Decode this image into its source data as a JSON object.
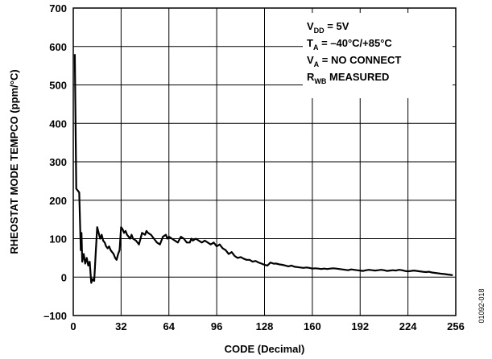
{
  "chart_data": {
    "type": "line",
    "title": "",
    "xlabel": "CODE (Decimal)",
    "ylabel": "RHEOSTAT MODE TEMPCO (ppm/°C)",
    "xlim": [
      0,
      256
    ],
    "ylim": [
      -100,
      700
    ],
    "xticks": [
      0,
      32,
      64,
      96,
      128,
      160,
      192,
      224,
      256
    ],
    "yticks": [
      -100,
      0,
      100,
      200,
      300,
      400,
      500,
      600,
      700
    ],
    "ytick_labels": [
      "–100",
      "0",
      "100",
      "200",
      "300",
      "400",
      "500",
      "600",
      "700"
    ],
    "grid": true,
    "annotations": [
      {
        "main": "V",
        "sub": "DD",
        "rest": " = 5V"
      },
      {
        "main": "T",
        "sub": "A",
        "rest": " = –40°C/+85°C"
      },
      {
        "main": "V",
        "sub": "A",
        "rest": " = NO CONNECT"
      },
      {
        "main": "R",
        "sub": "WB",
        "rest": " MEASURED"
      }
    ],
    "series": [
      {
        "x": [
          1,
          2,
          3,
          4,
          5,
          5.5,
          6,
          7,
          8,
          9,
          10,
          11,
          12,
          13,
          14,
          15,
          16,
          17,
          18,
          19,
          20,
          21,
          22,
          23,
          24,
          25,
          26,
          27,
          28,
          29,
          30,
          31,
          32,
          33,
          34,
          35,
          36,
          37,
          38,
          39,
          40,
          42,
          44,
          46,
          48,
          49,
          50,
          52,
          54,
          56,
          58,
          60,
          62,
          63,
          64,
          66,
          68,
          70,
          72,
          74,
          76,
          78,
          79,
          80,
          82,
          84,
          86,
          88,
          90,
          92,
          94,
          96,
          98,
          100,
          102,
          104,
          106,
          108,
          110,
          112,
          114,
          116,
          118,
          120,
          122,
          124,
          126,
          128,
          130,
          132,
          134,
          136,
          138,
          140,
          142,
          144,
          146,
          148,
          150,
          152,
          154,
          156,
          158,
          160,
          162,
          164,
          166,
          168,
          170,
          172,
          174,
          176,
          178,
          180,
          182,
          184,
          186,
          188,
          190,
          192,
          194,
          196,
          198,
          200,
          202,
          204,
          206,
          208,
          210,
          212,
          214,
          216,
          218,
          220,
          222,
          224,
          226,
          228,
          230,
          232,
          234,
          236,
          238,
          240,
          242,
          244,
          246,
          248,
          250,
          252,
          254
        ],
        "y": [
          580,
          230,
          225,
          220,
          70,
          115,
          40,
          60,
          35,
          50,
          30,
          40,
          -15,
          -5,
          -10,
          60,
          130,
          115,
          100,
          110,
          95,
          90,
          80,
          75,
          80,
          70,
          65,
          60,
          50,
          45,
          60,
          70,
          130,
          125,
          115,
          120,
          110,
          105,
          100,
          110,
          100,
          95,
          85,
          115,
          110,
          120,
          115,
          110,
          100,
          90,
          85,
          105,
          110,
          100,
          105,
          100,
          95,
          90,
          105,
          100,
          90,
          90,
          100,
          95,
          100,
          95,
          90,
          95,
          90,
          85,
          90,
          80,
          85,
          75,
          70,
          60,
          65,
          55,
          50,
          52,
          48,
          45,
          45,
          40,
          42,
          38,
          35,
          32,
          30,
          38,
          35,
          35,
          33,
          32,
          30,
          28,
          30,
          27,
          26,
          25,
          24,
          25,
          24,
          22,
          23,
          22,
          21,
          22,
          21,
          22,
          23,
          22,
          21,
          20,
          19,
          18,
          20,
          19,
          18,
          17,
          16,
          18,
          19,
          18,
          17,
          18,
          19,
          18,
          16,
          17,
          18,
          17,
          19,
          18,
          16,
          15,
          16,
          17,
          16,
          15,
          14,
          13,
          14,
          12,
          11,
          10,
          9,
          8,
          7,
          6,
          5
        ]
      }
    ]
  },
  "figure_id": "01092-018"
}
